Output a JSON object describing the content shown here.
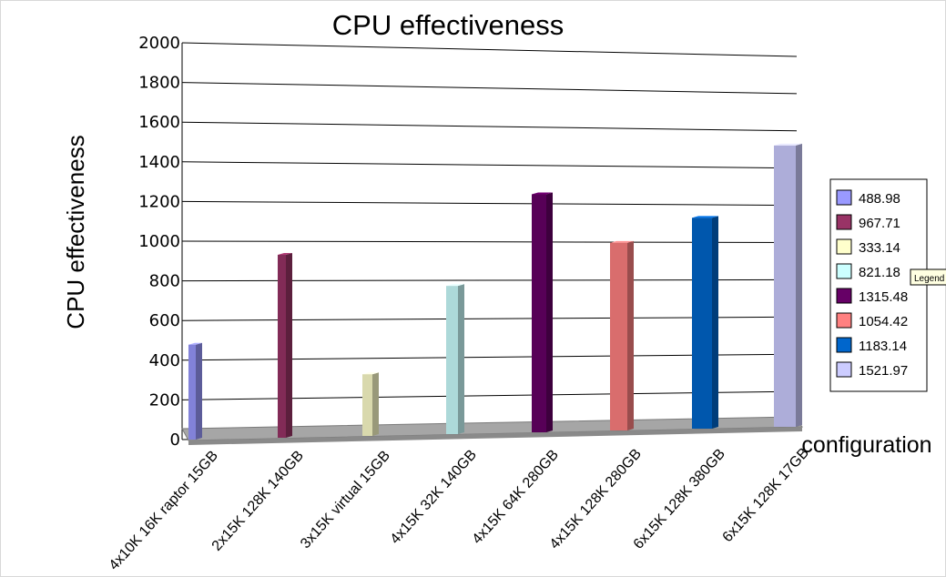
{
  "chart_data": {
    "type": "bar",
    "title": "CPU effectiveness",
    "ylabel": "CPU effectiveness",
    "xlabel": "configuration",
    "ylim": [
      0,
      2000
    ],
    "yticks": [
      0,
      200,
      400,
      600,
      800,
      1000,
      1200,
      1400,
      1600,
      1800,
      2000
    ],
    "grid": true,
    "legend_position": "right",
    "categories": [
      "4x10K 16K raptor 15GB",
      "2x15K 128K 140GB",
      "3x15K virtual 15GB",
      "4x15K 32K 140GB",
      "4x15K 64K 280GB",
      "4x15K 128K 280GB",
      "6x15K 128K 380GB",
      "6x15K 128K 17GB"
    ],
    "values": [
      488.98,
      967.71,
      333.14,
      821.18,
      1315.48,
      1054.42,
      1183.14,
      1521.97
    ],
    "legend_labels": [
      "488.98",
      "967.71",
      "333.14",
      "821.18",
      "1315.48",
      "1054.42",
      "1183.14",
      "1521.97"
    ],
    "colors": [
      "#9999ff",
      "#993366",
      "#ffffcc",
      "#ccffff",
      "#660066",
      "#ff8080",
      "#0066cc",
      "#ccccff"
    ]
  },
  "tooltip": {
    "text": "Legend"
  }
}
